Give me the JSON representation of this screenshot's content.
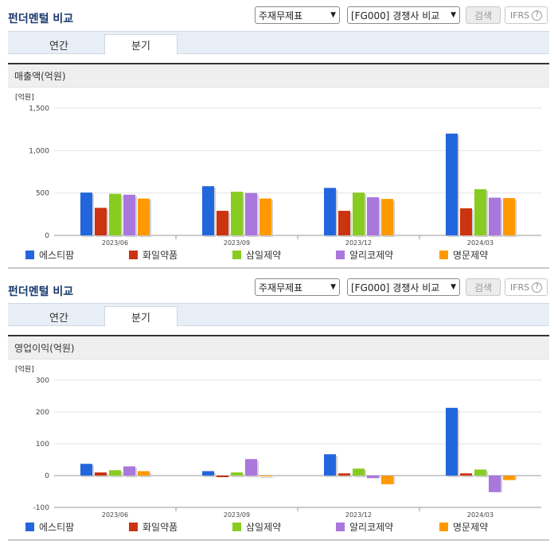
{
  "colors": {
    "에스티팜": "#2266dd",
    "화일약품": "#cc3311",
    "삼일제약": "#88cc22",
    "알리코제약": "#aa77dd",
    "명문제약": "#ff9900"
  },
  "sections": [
    {
      "title": "펀더멘털 비교",
      "select_type": "주재무제표",
      "select_compare": "[FG000] 경쟁사 비교",
      "search_label": "검색",
      "ifrs_label": "IFRS",
      "help_glyph": "?",
      "tabs": [
        "연간",
        "분기"
      ],
      "active_tab": "분기",
      "chart_title": "매출액(억원)",
      "unit_label": "[억원]"
    },
    {
      "title": "펀더멘털 비교",
      "select_type": "주재무제표",
      "select_compare": "[FG000] 경쟁사 비교",
      "search_label": "검색",
      "ifrs_label": "IFRS",
      "help_glyph": "?",
      "tabs": [
        "연간",
        "분기"
      ],
      "active_tab": "분기",
      "chart_title": "영업이익(억원)",
      "unit_label": "[억원]"
    }
  ],
  "chart_data": [
    {
      "type": "bar",
      "title": "매출액(억원)",
      "ylabel": "[억원]",
      "categories": [
        "2023/06",
        "2023/09",
        "2023/12",
        "2024/03"
      ],
      "ylim": [
        0,
        1500
      ],
      "yticks": [
        0,
        500,
        1000,
        1500
      ],
      "ytick_labels": [
        "0",
        "500",
        "1,000",
        "1,500"
      ],
      "grid": true,
      "legend": "bottom",
      "series": [
        {
          "name": "에스티팜",
          "values": [
            505,
            580,
            560,
            1200
          ]
        },
        {
          "name": "화일약품",
          "values": [
            325,
            290,
            290,
            320
          ]
        },
        {
          "name": "삼일제약",
          "values": [
            490,
            515,
            505,
            545
          ]
        },
        {
          "name": "알리코제약",
          "values": [
            480,
            500,
            450,
            445
          ]
        },
        {
          "name": "명문제약",
          "values": [
            435,
            435,
            430,
            440
          ]
        }
      ]
    },
    {
      "type": "bar",
      "title": "영업이익(억원)",
      "ylabel": "[억원]",
      "categories": [
        "2023/06",
        "2023/09",
        "2023/12",
        "2024/03"
      ],
      "ylim": [
        -100,
        300
      ],
      "yticks": [
        -100,
        0,
        100,
        200,
        300
      ],
      "ytick_labels": [
        "-100",
        "0",
        "100",
        "200",
        "300"
      ],
      "grid": true,
      "legend": "bottom",
      "series": [
        {
          "name": "에스티팜",
          "values": [
            37,
            14,
            67,
            213
          ]
        },
        {
          "name": "화일약품",
          "values": [
            10,
            -5,
            7,
            7
          ]
        },
        {
          "name": "삼일제약",
          "values": [
            17,
            10,
            22,
            19
          ]
        },
        {
          "name": "알리코제약",
          "values": [
            29,
            52,
            -8,
            -52
          ]
        },
        {
          "name": "명문제약",
          "values": [
            14,
            0,
            -27,
            -14
          ]
        }
      ]
    }
  ]
}
